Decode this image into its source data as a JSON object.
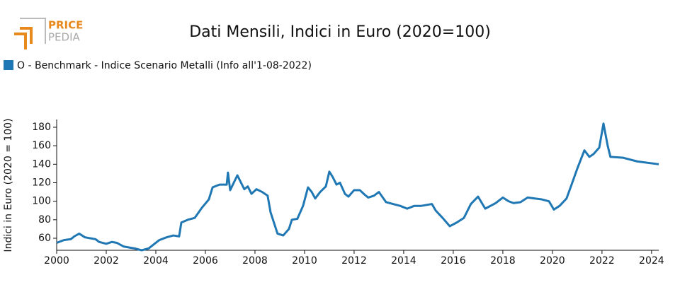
{
  "logo": {
    "top": "PRICE",
    "bottom": "PEDIA"
  },
  "chart_data": {
    "type": "line",
    "title": "Dati Mensili, Indici in Euro (2020=100)",
    "ylabel": "Indici in Euro (2020 = 100)",
    "xlim": [
      2000,
      2024.29
    ],
    "xticks": [
      2000,
      2002,
      2004,
      2006,
      2008,
      2010,
      2012,
      2014,
      2016,
      2018,
      2020,
      2022,
      2024
    ],
    "ylim": [
      47,
      188
    ],
    "yticks": [
      60,
      80,
      100,
      120,
      140,
      160,
      180
    ],
    "grid": false,
    "series": [
      {
        "name": "O - Benchmark - Indice Scenario Metalli (Info all'1-08-2022)",
        "color": "#1f77b4",
        "x": [
          2000.0,
          2000.29,
          2000.57,
          2000.71,
          2000.91,
          2001.14,
          2001.57,
          2001.71,
          2002.0,
          2002.23,
          2002.43,
          2002.71,
          2003.14,
          2003.43,
          2003.71,
          2004.14,
          2004.43,
          2004.71,
          2004.94,
          2005.03,
          2005.29,
          2005.57,
          2005.86,
          2006.14,
          2006.29,
          2006.57,
          2006.86,
          2006.91,
          2007.0,
          2007.29,
          2007.57,
          2007.71,
          2007.86,
          2008.06,
          2008.29,
          2008.51,
          2008.63,
          2008.91,
          2009.14,
          2009.37,
          2009.49,
          2009.71,
          2009.94,
          2010.14,
          2010.29,
          2010.43,
          2010.63,
          2010.86,
          2011.0,
          2011.14,
          2011.29,
          2011.43,
          2011.63,
          2011.77,
          2012.0,
          2012.23,
          2012.43,
          2012.57,
          2012.8,
          2013.0,
          2013.29,
          2013.57,
          2013.86,
          2014.14,
          2014.43,
          2014.71,
          2015.14,
          2015.29,
          2015.57,
          2015.86,
          2016.14,
          2016.43,
          2016.71,
          2017.0,
          2017.29,
          2017.71,
          2018.0,
          2018.23,
          2018.43,
          2018.71,
          2019.0,
          2019.29,
          2019.57,
          2019.86,
          2020.06,
          2020.29,
          2020.57,
          2020.8,
          2021.0,
          2021.29,
          2021.49,
          2021.66,
          2021.89,
          2022.06,
          2022.23,
          2022.34,
          2022.86,
          2023.43,
          2024.29
        ],
        "values": [
          55,
          58,
          59,
          62,
          65,
          61,
          59,
          56,
          54,
          56,
          55,
          51,
          49,
          47,
          49,
          58,
          61,
          63,
          62,
          77,
          80,
          82,
          93,
          102,
          115,
          118,
          118,
          131,
          112,
          128,
          113,
          116,
          108,
          113,
          110,
          106,
          88,
          65,
          63,
          70,
          80,
          81,
          95,
          115,
          110,
          103,
          110,
          116,
          132,
          126,
          118,
          120,
          108,
          105,
          112,
          112,
          107,
          104,
          106,
          110,
          99,
          97,
          95,
          92,
          95,
          95,
          97,
          90,
          82,
          73,
          77,
          82,
          97,
          105,
          92,
          98,
          104,
          100,
          98,
          99,
          104,
          103,
          102,
          100,
          91,
          95,
          103,
          120,
          135,
          155,
          148,
          151,
          158,
          184,
          160,
          148,
          147,
          143,
          140
        ]
      }
    ]
  }
}
